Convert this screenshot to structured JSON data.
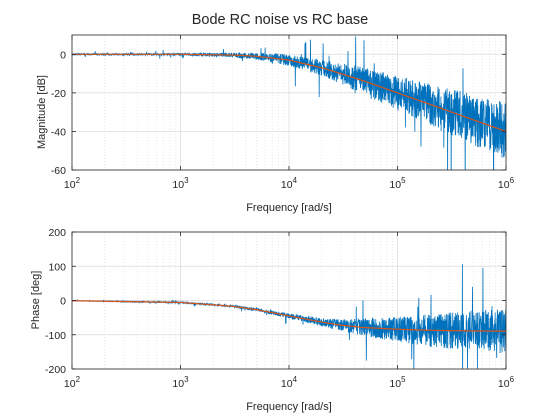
{
  "figure": {
    "title": "Bode RC noise vs RC base"
  },
  "colors": {
    "noisy": "#0072BD",
    "base": "#D95319",
    "grid": "#d9d9d9",
    "axis": "#262626"
  },
  "chart_data": [
    {
      "type": "line",
      "title": "Bode RC noise vs RC base",
      "xlabel": "Frequency [rad/s]",
      "ylabel": "Magnitude [dB]",
      "xscale": "log",
      "xlim": [
        100,
        1000000
      ],
      "ylim": [
        -60,
        10
      ],
      "xticks": [
        "10^2",
        "10^3",
        "10^4",
        "10^5",
        "10^6"
      ],
      "yticks": [
        -60,
        -40,
        -20,
        0
      ],
      "grid": true,
      "series": [
        {
          "x": [
            100,
            1000,
            3000,
            5000,
            10000,
            20000,
            30000,
            50000,
            100000,
            200000,
            500000,
            1000000
          ],
          "y": [
            0,
            0,
            -0.4,
            -1,
            -3,
            -7,
            -10,
            -14,
            -20,
            -26,
            -34,
            -40
          ],
          "noise_amplitude": [
            0.5,
            1,
            2,
            3,
            5,
            7,
            9,
            12,
            15,
            18,
            22,
            25
          ]
        },
        {
          "x": [
            100,
            1000,
            3000,
            5000,
            10000,
            20000,
            30000,
            50000,
            100000,
            200000,
            500000,
            1000000
          ],
          "y": [
            0,
            0,
            -0.4,
            -1,
            -3,
            -7,
            -10,
            -14,
            -20,
            -26,
            -34,
            -40
          ]
        }
      ]
    },
    {
      "type": "line",
      "title": "",
      "xlabel": "Frequency [rad/s]",
      "ylabel": "Phase [deg]",
      "xscale": "log",
      "xlim": [
        100,
        1000000
      ],
      "ylim": [
        -200,
        200
      ],
      "xticks": [
        "10^2",
        "10^3",
        "10^4",
        "10^5",
        "10^6"
      ],
      "yticks": [
        -200,
        -100,
        0,
        100,
        200
      ],
      "grid": true,
      "series": [
        {
          "x": [
            100,
            1000,
            3000,
            5000,
            10000,
            20000,
            30000,
            50000,
            100000,
            200000,
            500000,
            1000000
          ],
          "y": [
            -0.6,
            -5.7,
            -16.7,
            -26.6,
            -45,
            -63,
            -72,
            -79,
            -84,
            -87,
            -89,
            -89.5
          ],
          "noise_amplitude": [
            1,
            3,
            5,
            8,
            12,
            20,
            30,
            45,
            60,
            80,
            100,
            110
          ]
        },
        {
          "x": [
            100,
            1000,
            3000,
            5000,
            10000,
            20000,
            30000,
            50000,
            100000,
            200000,
            500000,
            1000000
          ],
          "y": [
            -0.6,
            -5.7,
            -16.7,
            -26.6,
            -45,
            -63,
            -72,
            -79,
            -84,
            -87,
            -89,
            -89.5
          ]
        }
      ]
    }
  ]
}
